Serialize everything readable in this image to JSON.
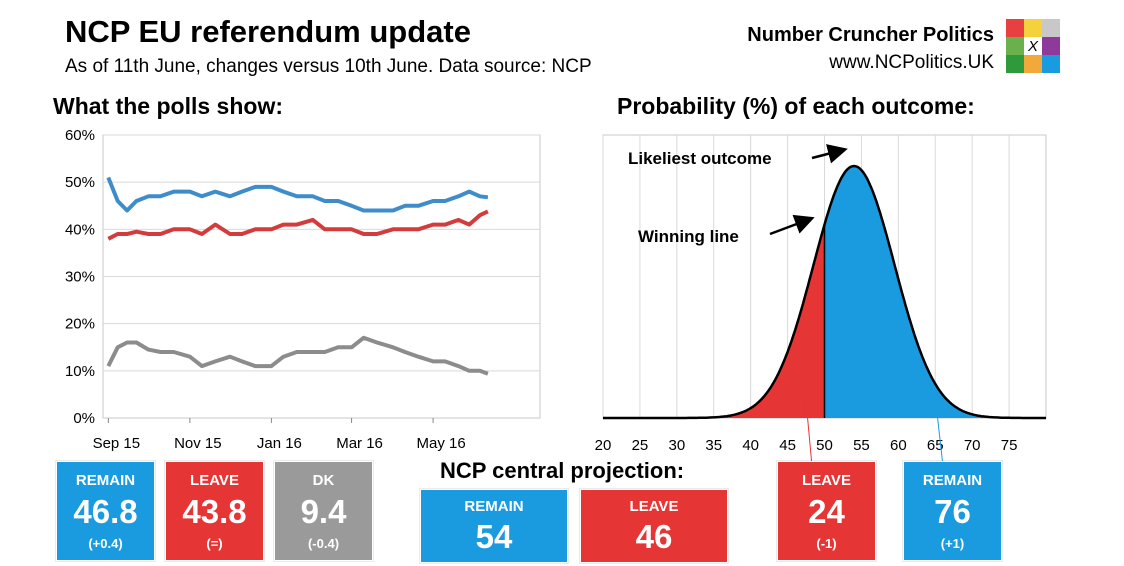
{
  "header": {
    "title": "NCP EU referendum update",
    "subtitle": "As of 11th June, changes versus 10th June. Data source: NCP",
    "brand": "Number Cruncher Politics",
    "website": "www.NCPolitics.UK",
    "logo_mark": "X"
  },
  "colors": {
    "remain": "#3f8ccb",
    "leave": "#d33c3c",
    "dk": "#8c8c8c",
    "remain_box": "#1a9be0",
    "leave_box": "#e63535",
    "dk_box": "#9a9a9a",
    "logo": [
      "#e84040",
      "#f5d23c",
      "#c8c8c8",
      "#6ab04c",
      "#ffffff",
      "#8e3a9b",
      "#2e9a3b",
      "#f2a93b",
      "#1a9be0"
    ]
  },
  "sections": {
    "polls": "What the polls show:",
    "probability": "Probability (%) of each outcome:",
    "projection": "NCP central projection:"
  },
  "annotations": {
    "likeliest": "Likeliest outcome",
    "winning_line": "Winning line"
  },
  "polls_boxes": [
    {
      "label": "REMAIN",
      "value": "46.8",
      "change": "(+0.4)"
    },
    {
      "label": "LEAVE",
      "value": "43.8",
      "change": "(=)"
    },
    {
      "label": "DK",
      "value": "9.4",
      "change": "(-0.4)"
    }
  ],
  "projection_boxes": [
    {
      "label": "REMAIN",
      "value": "54"
    },
    {
      "label": "LEAVE",
      "value": "46"
    }
  ],
  "probability_boxes": [
    {
      "label": "LEAVE",
      "value": "24",
      "change": "(-1)"
    },
    {
      "label": "REMAIN",
      "value": "76",
      "change": "(+1)"
    }
  ],
  "chart_data": [
    {
      "type": "line",
      "title": "What the polls show:",
      "x_tick_labels": [
        "Sep 15",
        "Nov 15",
        "Jan 16",
        "Mar 16",
        "May 16"
      ],
      "y_tick_labels": [
        "0%",
        "10%",
        "20%",
        "30%",
        "40%",
        "50%",
        "60%"
      ],
      "ylim": [
        0,
        60
      ],
      "x": [
        "2015-09-01",
        "2015-09-08",
        "2015-09-15",
        "2015-09-22",
        "2015-10-01",
        "2015-10-10",
        "2015-10-20",
        "2015-11-01",
        "2015-11-10",
        "2015-11-20",
        "2015-12-01",
        "2015-12-10",
        "2015-12-20",
        "2016-01-01",
        "2016-01-10",
        "2016-01-20",
        "2016-02-01",
        "2016-02-10",
        "2016-02-20",
        "2016-03-01",
        "2016-03-10",
        "2016-03-20",
        "2016-04-01",
        "2016-04-10",
        "2016-04-20",
        "2016-05-01",
        "2016-05-10",
        "2016-05-20",
        "2016-05-28",
        "2016-06-05",
        "2016-06-11"
      ],
      "series": [
        {
          "values": [
            51,
            46,
            44,
            46,
            47,
            47,
            48,
            48,
            47,
            48,
            47,
            48,
            49,
            49,
            48,
            47,
            47,
            46,
            46,
            45,
            44,
            44,
            44,
            45,
            45,
            46,
            46,
            47,
            48,
            47,
            46.8
          ]
        },
        {
          "values": [
            38,
            39,
            39,
            39.5,
            39,
            39,
            40,
            40,
            39,
            41,
            39,
            39,
            40,
            40,
            41,
            41,
            42,
            40,
            40,
            40,
            39,
            39,
            40,
            40,
            40,
            41,
            41,
            42,
            41,
            43,
            43.8
          ]
        },
        {
          "values": [
            11,
            15,
            16,
            16,
            14.5,
            14,
            14,
            13,
            11,
            12,
            13,
            12,
            11,
            11,
            13,
            14,
            14,
            14,
            15,
            15,
            17,
            16,
            15,
            14,
            13,
            12,
            12,
            11,
            10,
            10,
            9.4
          ]
        }
      ]
    },
    {
      "type": "area",
      "title": "Probability (%) of each outcome:",
      "x_tick_labels": [
        "20",
        "25",
        "30",
        "35",
        "40",
        "45",
        "50",
        "55",
        "60",
        "65",
        "70",
        "75"
      ],
      "xlim": [
        20,
        80
      ],
      "distribution": {
        "mean": 54,
        "sd": 5.5
      },
      "winning_line": 50,
      "series": [
        {
          "name": "LEAVE",
          "range": [
            20,
            50
          ]
        },
        {
          "name": "REMAIN",
          "range": [
            50,
            80
          ]
        }
      ]
    }
  ]
}
